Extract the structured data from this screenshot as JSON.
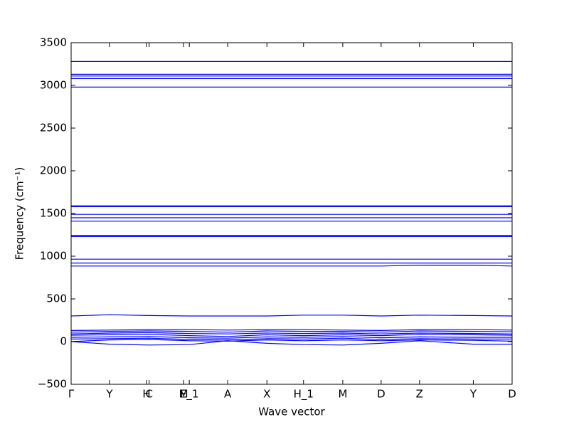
{
  "chart_data": {
    "type": "line",
    "xlabel": "Wave vector",
    "ylabel": "Frequency (cm⁻¹)",
    "xlim": [
      0,
      1
    ],
    "ylim": [
      -500,
      3500
    ],
    "xticks": [
      {
        "value": 0,
        "label": "Γ"
      },
      {
        "value": 0.087,
        "label": "Y"
      },
      {
        "value": 0.171,
        "label": "H"
      },
      {
        "value": 0.177,
        "label": "C"
      },
      {
        "value": 0.255,
        "label": "M"
      },
      {
        "value": 0.268,
        "label": "E_1"
      },
      {
        "value": 0.355,
        "label": "A"
      },
      {
        "value": 0.444,
        "label": "X"
      },
      {
        "value": 0.527,
        "label": "H_1"
      },
      {
        "value": 0.616,
        "label": "M"
      },
      {
        "value": 0.703,
        "label": "D"
      },
      {
        "value": 0.79,
        "label": "Z"
      },
      {
        "value": 0.912,
        "label": "Y"
      },
      {
        "value": 1,
        "label": "D"
      }
    ],
    "yticks": [
      {
        "value": -500,
        "label": "−500"
      },
      0,
      500,
      1000,
      1500,
      2000,
      2500,
      3000,
      3500
    ],
    "x": [
      0,
      0.087,
      0.177,
      0.268,
      0.355,
      0.444,
      0.527,
      0.616,
      0.703,
      0.79,
      0.912,
      1
    ],
    "series": [
      {
        "color": "#0000ff",
        "values": [
          3280,
          3280,
          3280,
          3280,
          3280,
          3280,
          3280,
          3280,
          3280,
          3280,
          3280,
          3280
        ]
      },
      {
        "color": "#0000ff",
        "values": [
          3130,
          3130,
          3130,
          3130,
          3130,
          3130,
          3130,
          3130,
          3130,
          3130,
          3130,
          3130
        ]
      },
      {
        "color": "#0000ff",
        "values": [
          3110,
          3110,
          3110,
          3110,
          3110,
          3110,
          3110,
          3110,
          3110,
          3110,
          3110,
          3110
        ]
      },
      {
        "color": "#0000ff",
        "values": [
          3080,
          3080,
          3080,
          3080,
          3080,
          3080,
          3080,
          3080,
          3080,
          3080,
          3080,
          3080
        ]
      },
      {
        "color": "#0000ff",
        "values": [
          2980,
          2980,
          2980,
          2980,
          2980,
          2980,
          2980,
          2980,
          2980,
          2980,
          2980,
          2980
        ]
      },
      {
        "color": "#0000ff",
        "values": [
          1590,
          1590,
          1590,
          1590,
          1590,
          1590,
          1590,
          1590,
          1590,
          1590,
          1590,
          1590
        ]
      },
      {
        "color": "#0000ff",
        "values": [
          1580,
          1580,
          1580,
          1580,
          1580,
          1580,
          1580,
          1580,
          1580,
          1580,
          1580,
          1580
        ]
      },
      {
        "color": "#0000ff",
        "values": [
          1490,
          1490,
          1490,
          1490,
          1490,
          1490,
          1490,
          1490,
          1490,
          1490,
          1490,
          1490
        ]
      },
      {
        "color": "#0000ff",
        "values": [
          1450,
          1450,
          1450,
          1450,
          1450,
          1450,
          1450,
          1450,
          1450,
          1450,
          1450,
          1450
        ]
      },
      {
        "color": "#0000ff",
        "values": [
          1410,
          1410,
          1410,
          1410,
          1410,
          1410,
          1410,
          1410,
          1410,
          1410,
          1410,
          1410
        ]
      },
      {
        "color": "#0000ff",
        "values": [
          1245,
          1245,
          1245,
          1245,
          1245,
          1245,
          1245,
          1245,
          1245,
          1245,
          1245,
          1245
        ]
      },
      {
        "color": "#0000ff",
        "values": [
          1230,
          1230,
          1230,
          1230,
          1230,
          1230,
          1230,
          1230,
          1230,
          1230,
          1230,
          1230
        ]
      },
      {
        "color": "#0000ff",
        "values": [
          965,
          965,
          965,
          965,
          965,
          965,
          965,
          965,
          965,
          965,
          965,
          965
        ]
      },
      {
        "color": "#0000ff",
        "values": [
          920,
          920,
          920,
          920,
          920,
          920,
          920,
          920,
          920,
          920,
          920,
          920
        ]
      },
      {
        "color": "#0000ff",
        "values": [
          885,
          885,
          885,
          885,
          885,
          885,
          885,
          885,
          885,
          895,
          895,
          885
        ]
      },
      {
        "color": "#0000ff",
        "values": [
          300,
          315,
          305,
          300,
          300,
          300,
          310,
          310,
          300,
          310,
          305,
          300
        ]
      },
      {
        "color": "#0000ff",
        "values": [
          130,
          135,
          140,
          140,
          135,
          140,
          140,
          135,
          130,
          140,
          140,
          135
        ]
      },
      {
        "color": "#0000ff",
        "values": [
          110,
          120,
          125,
          120,
          110,
          125,
          120,
          120,
          110,
          125,
          120,
          115
        ]
      },
      {
        "color": "#0000ff",
        "values": [
          90,
          100,
          105,
          95,
          90,
          100,
          95,
          100,
          90,
          100,
          95,
          90
        ]
      },
      {
        "color": "#0000ff",
        "values": [
          75,
          80,
          85,
          70,
          60,
          80,
          70,
          80,
          70,
          85,
          80,
          75
        ]
      },
      {
        "color": "#0000ff",
        "values": [
          50,
          55,
          60,
          45,
          40,
          55,
          50,
          60,
          45,
          55,
          50,
          50
        ]
      },
      {
        "color": "#0000ff",
        "values": [
          30,
          35,
          40,
          25,
          20,
          35,
          30,
          40,
          25,
          35,
          30,
          30
        ]
      },
      {
        "color": "#0000ff",
        "values": [
          0,
          20,
          25,
          10,
          5,
          20,
          10,
          20,
          10,
          20,
          15,
          5
        ]
      },
      {
        "color": "#0000ff",
        "values": [
          0,
          -30,
          -40,
          -35,
          10,
          -20,
          -35,
          -40,
          -20,
          10,
          -30,
          -30
        ]
      }
    ]
  }
}
